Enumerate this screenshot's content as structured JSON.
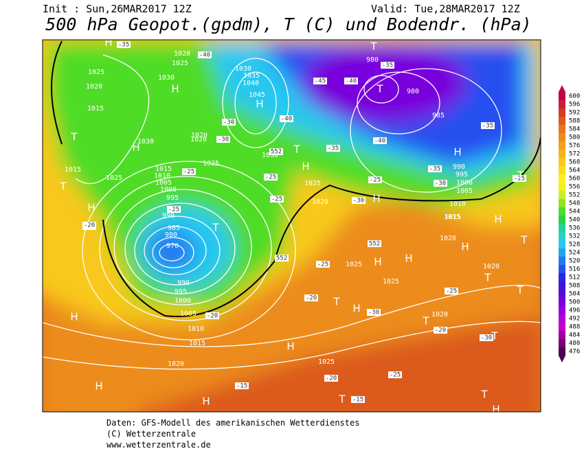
{
  "header": {
    "init": "Init : Sun,26MAR2017 12Z",
    "valid": "Valid: Tue,28MAR2017 12Z",
    "title": "500 hPa Geopot.(gpdm), T (C) und Bodendr. (hPa)"
  },
  "colorbar": {
    "ticks": [
      600,
      596,
      592,
      588,
      584,
      580,
      576,
      572,
      568,
      564,
      560,
      556,
      552,
      548,
      544,
      540,
      536,
      532,
      528,
      524,
      520,
      516,
      512,
      508,
      504,
      500,
      496,
      492,
      488,
      484,
      480,
      476
    ],
    "colors": [
      "#c0004a",
      "#c81e3c",
      "#d23c28",
      "#dc5a1e",
      "#e6781e",
      "#ec8c1e",
      "#f0a01e",
      "#f5b41e",
      "#f8c81e",
      "#fadc1e",
      "#fcf01e",
      "#f0f020",
      "#c8f028",
      "#8ce628",
      "#50dc28",
      "#28d250",
      "#28d28c",
      "#28d2c8",
      "#28c8f0",
      "#28a0f0",
      "#2878f0",
      "#2850f0",
      "#2828e6",
      "#3c14dc",
      "#5a0adc",
      "#7800dc",
      "#9600dc",
      "#b400dc",
      "#c800c8",
      "#a000a0",
      "#780078",
      "#500050"
    ]
  },
  "map": {
    "isobar_labels": [
      "1020",
      "1025",
      "1025",
      "1020",
      "1015",
      "1030",
      "1035",
      "1040",
      "1045",
      "1030",
      "1020",
      "1025",
      "1030",
      "1025",
      "1015",
      "1010",
      "1005",
      "1000",
      "995",
      "990",
      "985",
      "980",
      "970",
      "990",
      "995",
      "1000",
      "1005",
      "1010",
      "1015",
      "1020",
      "1025",
      "1025",
      "1020",
      "1025",
      "1020",
      "1015",
      "980",
      "980",
      "985",
      "990",
      "995",
      "1000",
      "1005",
      "1010",
      "1015",
      "1020",
      "1015",
      "1025",
      "1030",
      "1020",
      "1020"
    ],
    "isotherm_labels": [
      "-35",
      "-40",
      "-45",
      "-40",
      "-35",
      "-40",
      "-30",
      "-30",
      "-35",
      "-25",
      "-25",
      "-25",
      "-30",
      "-25",
      "-20",
      "-25",
      "-20",
      "-30",
      "-25",
      "-25",
      "-35",
      "-40",
      "-35",
      "-30",
      "-25",
      "-20",
      "-20",
      "-25",
      "-20",
      "-30",
      "-20",
      "-15",
      "-15",
      "552",
      "552",
      "552"
    ],
    "centers": [
      "H",
      "H",
      "H",
      "T",
      "T",
      "H",
      "H",
      "H",
      "T",
      "T",
      "H",
      "T",
      "T",
      "H",
      "T",
      "H",
      "T",
      "H",
      "H",
      "H",
      "T",
      "H",
      "T",
      "T",
      "T",
      "H",
      "H",
      "T",
      "H",
      "H",
      "T",
      "H",
      "T"
    ]
  },
  "footer": {
    "line1": "Daten: GFS-Modell des amerikanischen Wetterdienstes",
    "line2": "(C) Wetterzentrale",
    "line3": "www.wetterzentrale.de"
  }
}
